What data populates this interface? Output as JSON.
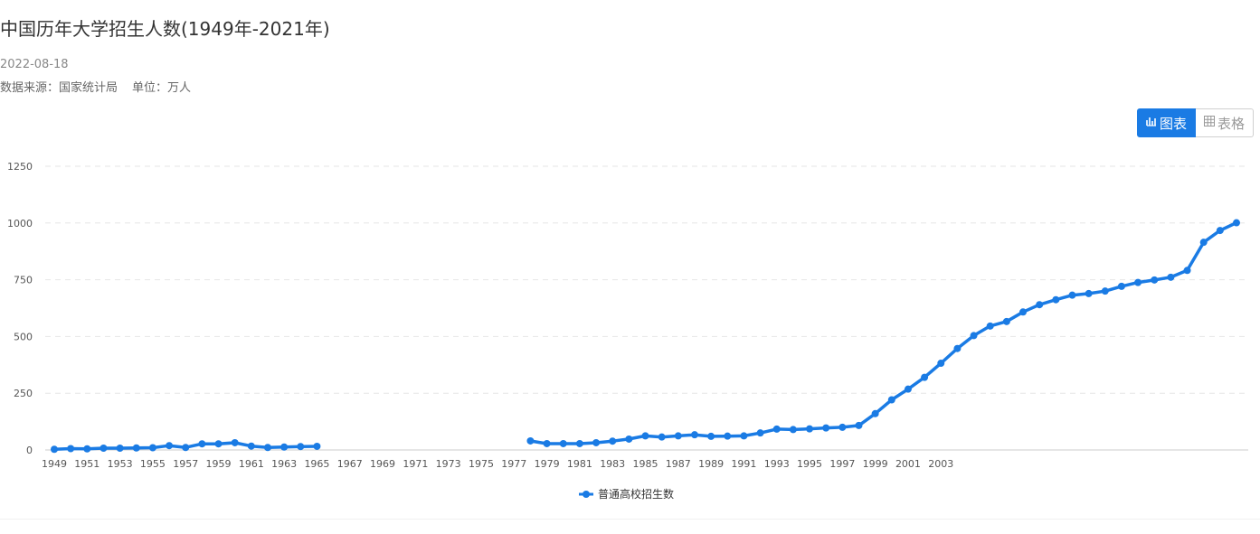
{
  "header": {
    "title": "中国历年大学招生人数(1949年-2021年)",
    "date": "2022-08-18",
    "source": "数据来源：国家统计局",
    "unit": "单位：万人"
  },
  "toggle": {
    "chart_icon": "chart-icon",
    "chart_label": "图表",
    "table_icon": "table-icon",
    "table_label": "表格"
  },
  "colors": {
    "series": "#1a7be4",
    "grid": "#e6e6e6",
    "axis": "#cccccc",
    "tick": "#555555"
  },
  "chart_data": {
    "type": "line",
    "title": "中国历年大学招生人数(1949年-2021年)",
    "xlabel": "",
    "ylabel": "",
    "ylim": [
      0,
      1250
    ],
    "yticks": [
      0,
      250,
      500,
      750,
      1000,
      1250
    ],
    "x_tick_labels": [
      "1949",
      "1951",
      "1953",
      "1955",
      "1957",
      "1959",
      "1961",
      "1963",
      "1965",
      "1967",
      "1969",
      "1971",
      "1973",
      "1975",
      "1977",
      "1979",
      "1981",
      "1983",
      "1985",
      "1987",
      "1989",
      "1991",
      "1993",
      "1995",
      "1997",
      "1999",
      "2001",
      "2003"
    ],
    "grid": true,
    "legend": "bottom-center",
    "series": [
      {
        "name": "普通高校招生数",
        "x": [
          1949,
          1950,
          1951,
          1952,
          1953,
          1954,
          1955,
          1956,
          1957,
          1958,
          1959,
          1960,
          1961,
          1962,
          1963,
          1964,
          1965,
          1966,
          1967,
          1968,
          1969,
          1970,
          1971,
          1972,
          1973,
          1974,
          1975,
          1976,
          1977,
          1978,
          1979,
          1980,
          1981,
          1982,
          1983,
          1984,
          1985,
          1986,
          1987,
          1988,
          1989,
          1990,
          1991,
          1992,
          1993,
          1994,
          1995,
          1996,
          1997,
          1998,
          1999,
          2000,
          2001,
          2002,
          2003,
          2004,
          2005,
          2006,
          2007,
          2008,
          2009,
          2010,
          2011,
          2012,
          2013,
          2014,
          2015,
          2016,
          2017,
          2018,
          2019,
          2020,
          2021
        ],
        "values": [
          3,
          6,
          5,
          8,
          8,
          9,
          10,
          19,
          11,
          27,
          27,
          32,
          17,
          11,
          13,
          15,
          16,
          null,
          null,
          null,
          null,
          null,
          null,
          null,
          null,
          null,
          null,
          null,
          null,
          40,
          28,
          28,
          28,
          32,
          39,
          48,
          62,
          57,
          62,
          67,
          60,
          61,
          62,
          75,
          92,
          90,
          93,
          97,
          100,
          108,
          160,
          221,
          268,
          320,
          382,
          447,
          504,
          546,
          566,
          608,
          640,
          662,
          682,
          689,
          700,
          721,
          738,
          749,
          761,
          791,
          915,
          967,
          1001
        ]
      }
    ]
  },
  "legend": {
    "label": "普通高校招生数"
  }
}
